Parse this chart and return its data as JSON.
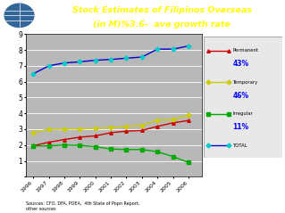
{
  "years": [
    1996,
    1997,
    1998,
    1999,
    2000,
    2001,
    2002,
    2003,
    2004,
    2005,
    2006
  ],
  "permanent": [
    1.96,
    2.18,
    2.35,
    2.5,
    2.58,
    2.78,
    2.88,
    2.92,
    3.18,
    3.4,
    3.55
  ],
  "temporary": [
    2.78,
    3.0,
    3.01,
    3.02,
    3.05,
    3.1,
    3.18,
    3.25,
    3.58,
    3.6,
    3.9
  ],
  "irregular": [
    1.95,
    1.95,
    2.0,
    1.98,
    1.9,
    1.75,
    1.72,
    1.72,
    1.58,
    1.28,
    0.9
  ],
  "total": [
    6.5,
    7.0,
    7.18,
    7.25,
    7.35,
    7.4,
    7.48,
    7.55,
    8.05,
    8.05,
    8.25
  ],
  "permanent_color": "#cc0000",
  "temporary_color": "#cccc00",
  "irregular_color": "#00aa00",
  "total_color": "#0000cc",
  "total_marker_color": "#00cccc",
  "title_line1": "Stock Estimates of Filipinos Overseas",
  "title_line2": "(in M)%3.6-  ave growth rate",
  "title_bg": "#000080",
  "title_color": "#ffff00",
  "chart_bg": "#b8b8b8",
  "legend_pct_color": "#0000ff",
  "source_text": "Sources: CFO, DFA, POEA,  4th State of Popn Report,\nother sources",
  "ylim": [
    0,
    9
  ],
  "yticks": [
    0,
    1,
    2,
    3,
    4,
    5,
    6,
    7,
    8,
    9
  ],
  "legend_bg": "#e8e8e8"
}
